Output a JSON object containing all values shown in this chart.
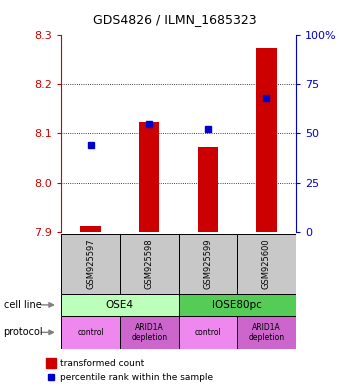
{
  "title": "GDS4826 / ILMN_1685323",
  "samples": [
    "GSM925597",
    "GSM925598",
    "GSM925599",
    "GSM925600"
  ],
  "bar_values": [
    7.912,
    8.123,
    8.073,
    8.272
  ],
  "bar_bottom": 7.9,
  "blue_sq_pct": [
    44,
    55,
    52,
    68
  ],
  "ylim": [
    7.9,
    8.3
  ],
  "yticks": [
    7.9,
    8.0,
    8.1,
    8.2,
    8.3
  ],
  "right_yticks": [
    0,
    25,
    50,
    75,
    100
  ],
  "right_ylim": [
    0,
    100
  ],
  "bar_color": "#cc0000",
  "blue_color": "#0000cc",
  "cell_line_labels": [
    "OSE4",
    "IOSE80pc"
  ],
  "cell_line_spans": [
    [
      0,
      2
    ],
    [
      2,
      4
    ]
  ],
  "cell_line_colors": [
    "#bbffbb",
    "#55cc55"
  ],
  "protocols": [
    "control",
    "ARID1A\ndepletion",
    "control",
    "ARID1A\ndepletion"
  ],
  "protocol_colors": [
    "#ee88ee",
    "#cc66cc",
    "#ee88ee",
    "#cc66cc"
  ],
  "legend_bar_label": "transformed count",
  "legend_sq_label": "percentile rank within the sample",
  "axis_left_color": "#cc0000",
  "axis_right_color": "#0000cc",
  "background_color": "#ffffff",
  "sample_box_color": "#c8c8c8",
  "bar_width": 0.35
}
